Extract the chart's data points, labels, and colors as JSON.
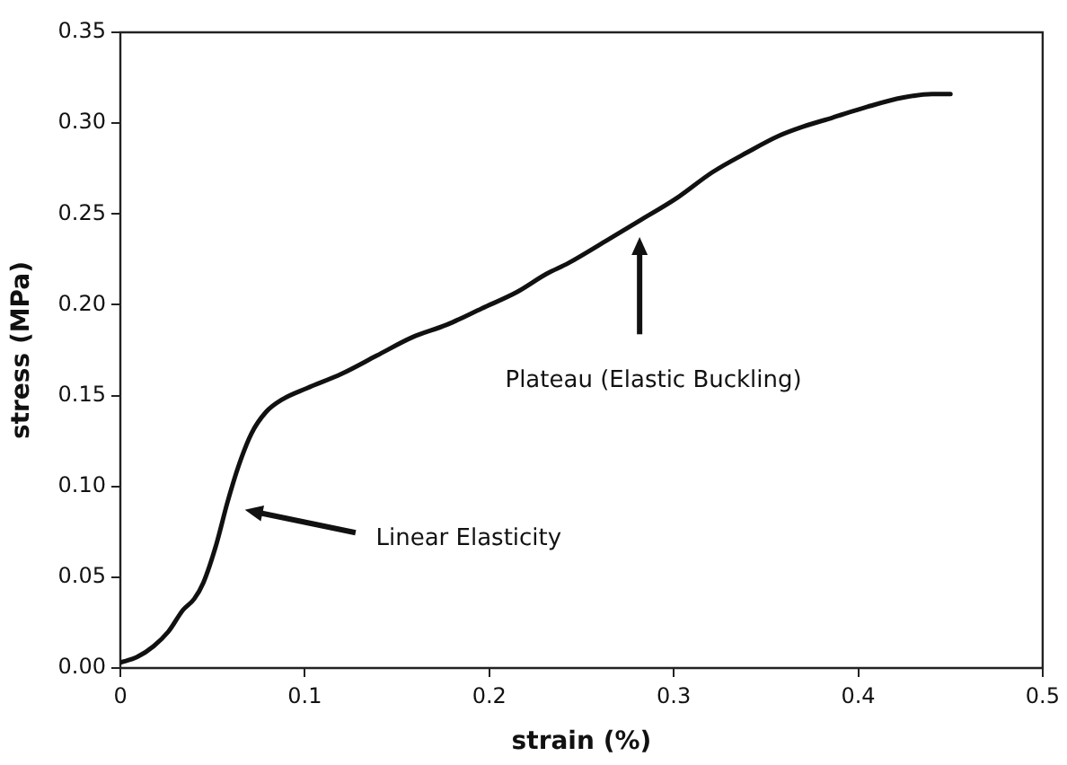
{
  "chart_data": {
    "type": "line",
    "xlabel": "strain (%)",
    "ylabel": "stress (MPa)",
    "xlim": [
      0,
      0.5
    ],
    "xticks": [
      0,
      0.1,
      0.2,
      0.3,
      0.4,
      0.5
    ],
    "ylim": [
      0,
      0.35
    ],
    "yticks": [
      {
        "value": 0,
        "label": "0.00"
      },
      {
        "value": 0.05,
        "label": "0.05"
      },
      {
        "value": 0.1,
        "label": "0.10"
      },
      {
        "value": 0.15,
        "label": "0.15"
      },
      {
        "value": 0.2,
        "label": "0.20"
      },
      {
        "value": 0.25,
        "label": "0.25"
      },
      {
        "value": 0.3,
        "label": "0.30"
      },
      {
        "value": 0.35,
        "label": "0.35"
      }
    ],
    "grid": false,
    "legend": false,
    "marker": "none",
    "line_style": "solid",
    "series": [
      {
        "color": "#111111",
        "x": [
          0,
          0.009,
          0.018,
          0.026,
          0.034,
          0.04,
          0.045,
          0.052,
          0.058,
          0.064,
          0.071,
          0.079,
          0.088,
          0.101,
          0.12,
          0.139,
          0.158,
          0.177,
          0.196,
          0.215,
          0.231,
          0.243,
          0.263,
          0.281,
          0.302,
          0.321,
          0.34,
          0.357,
          0.37,
          0.386,
          0.405,
          0.424,
          0.44,
          0.45
        ],
        "values": [
          0.003,
          0.006,
          0.012,
          0.02,
          0.032,
          0.038,
          0.047,
          0.068,
          0.091,
          0.111,
          0.129,
          0.141,
          0.148,
          0.154,
          0.162,
          0.172,
          0.182,
          0.189,
          0.198,
          0.207,
          0.217,
          0.223,
          0.235,
          0.246,
          0.259,
          0.273,
          0.284,
          0.293,
          0.298,
          0.303,
          0.309,
          0.314,
          0.316,
          0.316
        ]
      }
    ],
    "annotations": [
      "Linear Elasticity",
      "Plateau (Elastic Buckling)"
    ]
  }
}
